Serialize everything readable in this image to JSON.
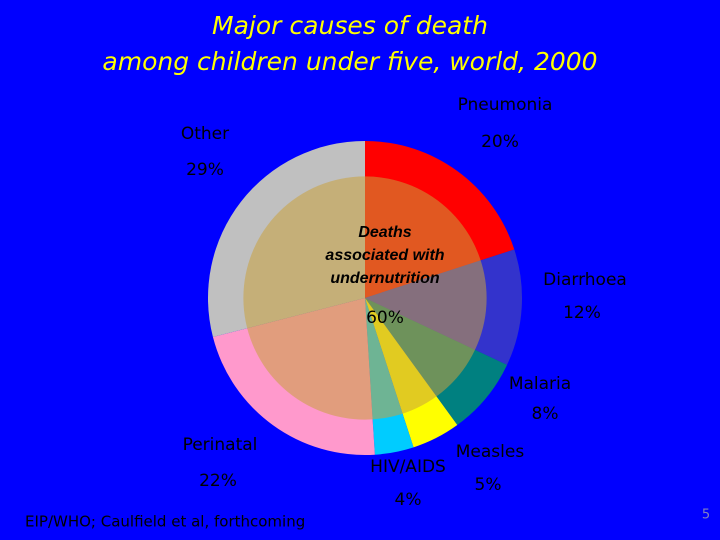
{
  "chart_data": {
    "type": "pie",
    "title": [
      "Major causes of death",
      "among children under five, world, 2000"
    ],
    "categories": [
      "Pneumonia",
      "Diarrhoea",
      "Malaria",
      "Measles",
      "HIV/AIDS",
      "Perinatal",
      "Other"
    ],
    "values": [
      20,
      12,
      8,
      5,
      4,
      22,
      29
    ],
    "value_labels": [
      "20%",
      "12%",
      "8%",
      "5%",
      "4%",
      "22%",
      "29%"
    ],
    "colors": [
      "#ff0000",
      "#3333cc",
      "#008080",
      "#ffff00",
      "#00ccff",
      "#ff99cc",
      "#c0c0c0"
    ],
    "inner": {
      "label": [
        "Deaths",
        "associated with",
        "undernutrition"
      ],
      "value": 60,
      "value_label": "60%"
    },
    "source": "EIP/WHO; Caulfield et al, forthcoming",
    "page_number": "5"
  }
}
